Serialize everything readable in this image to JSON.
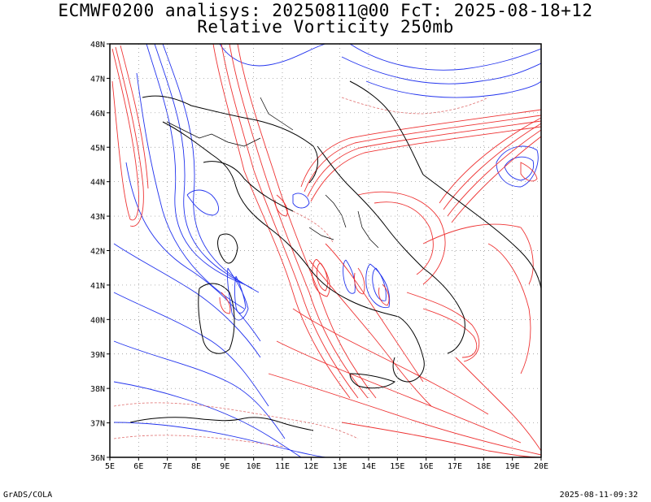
{
  "titles": {
    "line1": "ECMWF0200 analisys: 20250811@00 FcT: 2025-08-18+12",
    "line2": "Relative Vorticity 250mb"
  },
  "footer": {
    "left": "GrADS/COLA",
    "right": "2025-08-11-09:32"
  },
  "map": {
    "lon_labels": [
      "5E",
      "6E",
      "7E",
      "8E",
      "9E",
      "10E",
      "11E",
      "12E",
      "13E",
      "14E",
      "15E",
      "16E",
      "17E",
      "18E",
      "19E",
      "20E"
    ],
    "lat_labels": [
      "48N",
      "47N",
      "46N",
      "45N",
      "44N",
      "43N",
      "42N",
      "41N",
      "40N",
      "39N",
      "38N",
      "37N",
      "36N"
    ],
    "lon_range": [
      5,
      20
    ],
    "lat_range": [
      36,
      48
    ],
    "grid": "dotted",
    "colors": {
      "positive_contour": "#ee3333",
      "positive_dashed": "#e07070",
      "negative_contour": "#2233ee",
      "coastline": "#000000"
    }
  }
}
